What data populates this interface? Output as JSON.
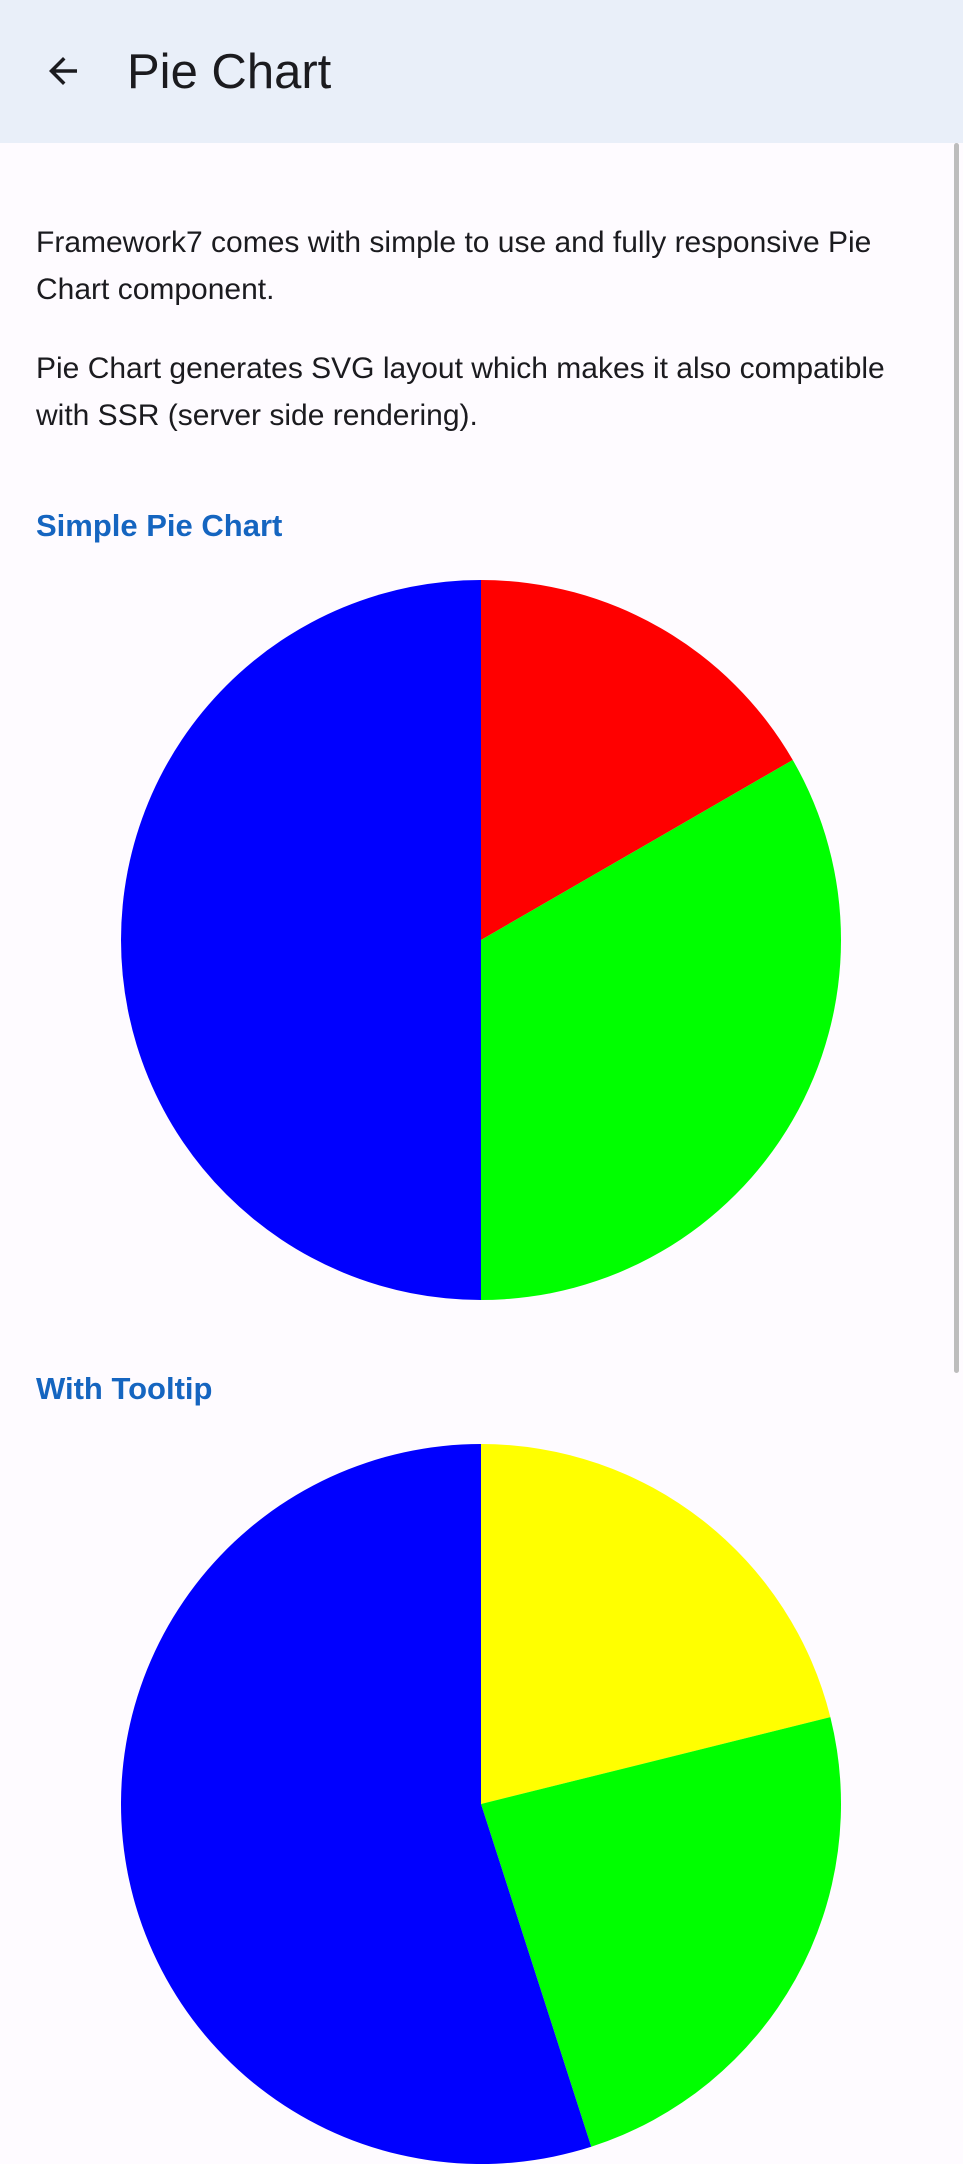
{
  "navbar": {
    "title": "Pie Chart",
    "back_icon": "arrow-left-icon"
  },
  "intro": {
    "paragraph1": "Framework7 comes with simple to use and fully responsive Pie Chart component.",
    "paragraph2": "Pie Chart generates SVG layout which makes it also compatible with SSR (server side rendering)."
  },
  "sections": [
    {
      "title": "Simple Pie Chart"
    },
    {
      "title": "With Tooltip"
    }
  ],
  "chart_data": [
    {
      "type": "pie",
      "title": "Simple Pie Chart",
      "series": [
        {
          "value": 100,
          "color": "#ff0000"
        },
        {
          "value": 200,
          "color": "#00ff00"
        },
        {
          "value": 300,
          "color": "#0000ff"
        }
      ]
    },
    {
      "type": "pie",
      "title": "With Tooltip",
      "series": [
        {
          "value": 113,
          "color": "#ffff00"
        },
        {
          "value": 128,
          "color": "#00ff00"
        },
        {
          "value": 294,
          "color": "#0000ff"
        }
      ]
    }
  ]
}
